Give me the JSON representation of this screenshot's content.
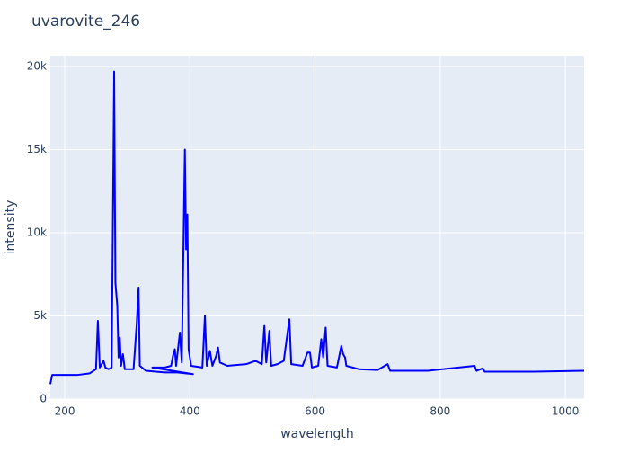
{
  "chart_data": {
    "type": "line",
    "title": "uvarovite_246",
    "x_label": "wavelength",
    "y_label": "intensity",
    "x": [
      177,
      180,
      220,
      240,
      250,
      253,
      256,
      262,
      265,
      270,
      275,
      279,
      281,
      284,
      286,
      288,
      290,
      293,
      296,
      310,
      315,
      318,
      320,
      330,
      360,
      380,
      405,
      340,
      360,
      370,
      373,
      376,
      378,
      384,
      387,
      392,
      394,
      396,
      398,
      402,
      420,
      424,
      427,
      432,
      436,
      442,
      445,
      448,
      460,
      490,
      505,
      515,
      519,
      522,
      527,
      530,
      540,
      550,
      559,
      562,
      580,
      588,
      592,
      595,
      605,
      610,
      613,
      617,
      620,
      635,
      642,
      645,
      648,
      650,
      670,
      700,
      716,
      720,
      780,
      855,
      858,
      868,
      871,
      950,
      1030
    ],
    "series": [
      {
        "name": "uvarovite_246",
        "color": "#0000ff",
        "values": [
          900,
          1450,
          1450,
          1550,
          1800,
          4700,
          1900,
          2300,
          1900,
          1800,
          1900,
          19700,
          7000,
          5600,
          2500,
          3700,
          2000,
          2700,
          1800,
          1800,
          4500,
          6700,
          2000,
          1700,
          1600,
          1600,
          1500,
          1900,
          1900,
          2000,
          2600,
          3000,
          2000,
          4000,
          2200,
          15000,
          9000,
          11100,
          3000,
          2000,
          1900,
          5000,
          2000,
          2900,
          2000,
          2600,
          3100,
          2200,
          2000,
          2100,
          2300,
          2100,
          4400,
          2200,
          4100,
          2000,
          2100,
          2300,
          4800,
          2100,
          2000,
          2800,
          2800,
          1900,
          2000,
          3600,
          2500,
          4300,
          2000,
          1900,
          3200,
          2700,
          2500,
          2000,
          1800,
          1750,
          2100,
          1700,
          1700,
          2000,
          1700,
          1850,
          1650,
          1650,
          1700
        ]
      }
    ],
    "xlim": [
      177,
      1030
    ],
    "ylim": [
      0,
      20650
    ],
    "xticks": [
      200,
      400,
      600,
      800,
      1000
    ],
    "yticks": [
      0,
      {
        "value": 5000,
        "label": "5k"
      },
      {
        "value": 10000,
        "label": "10k"
      },
      {
        "value": 15000,
        "label": "15k"
      },
      {
        "value": 20000,
        "label": "20k"
      }
    ],
    "grid": true
  }
}
